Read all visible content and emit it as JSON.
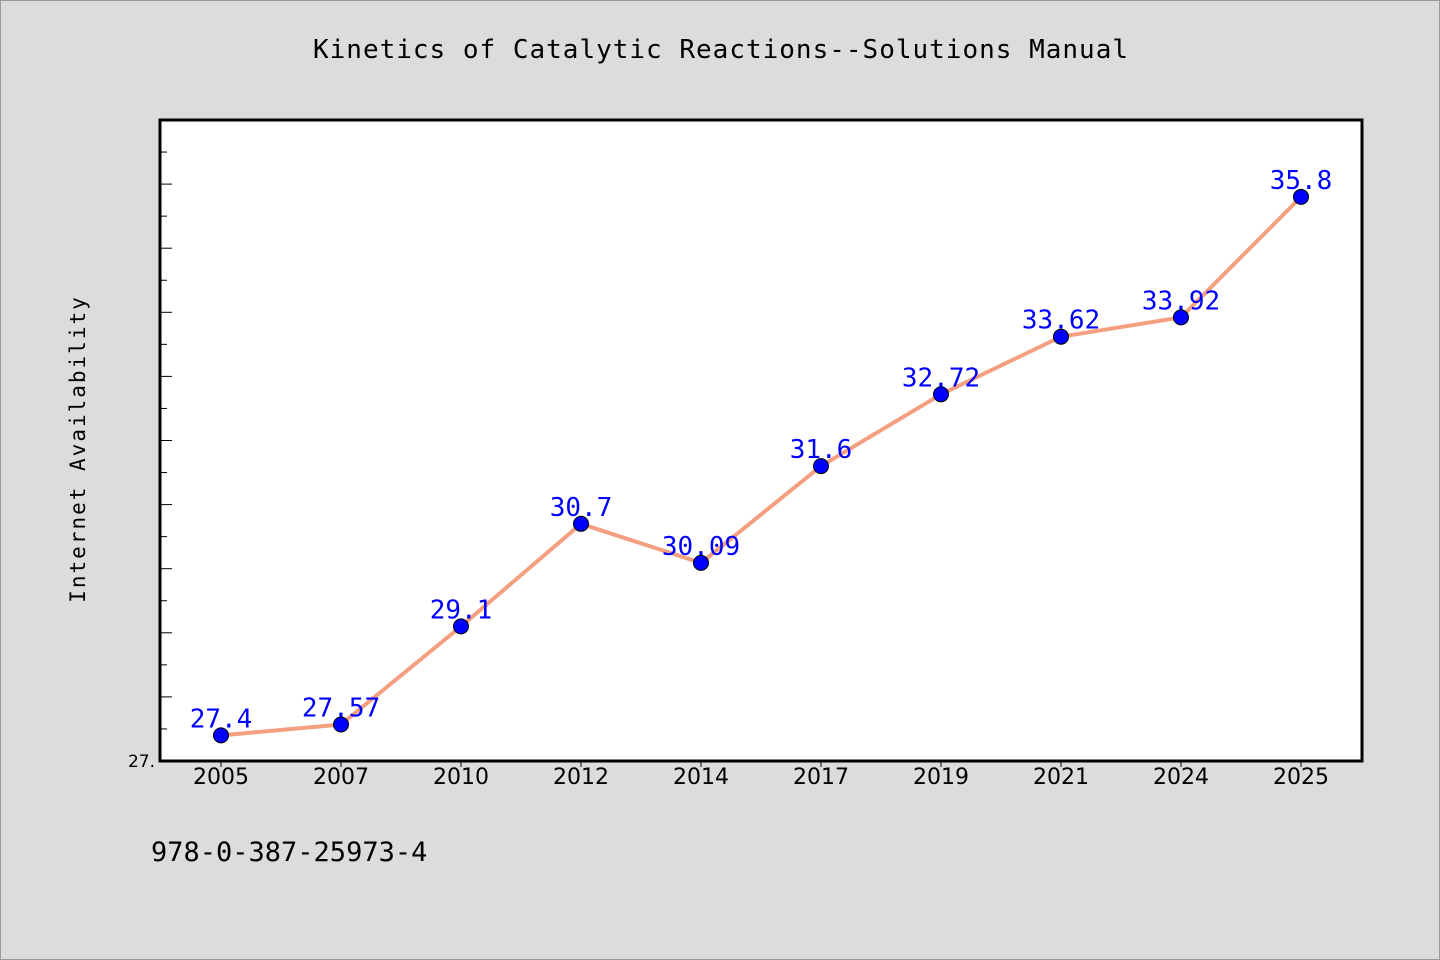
{
  "chart_data": {
    "type": "line",
    "title": "Kinetics of Catalytic Reactions--Solutions Manual",
    "ylabel": "Internet Availability",
    "xlabel": "",
    "categories": [
      "2005",
      "2007",
      "2010",
      "2012",
      "2014",
      "2017",
      "2019",
      "2021",
      "2024",
      "2025"
    ],
    "series": [
      {
        "values": [
          27.4,
          27.57,
          29.1,
          30.7,
          30.09,
          31.6,
          32.72,
          33.62,
          33.92,
          35.8
        ],
        "labels": [
          "27.4",
          "27.57",
          "29.1",
          "30.7",
          "30.09",
          "31.6",
          "32.72",
          "33.62",
          "33.92",
          "35.8"
        ]
      }
    ],
    "ylim": [
      27.0,
      37.0
    ],
    "y_min_label": "27.",
    "grid": false,
    "legend": "none",
    "colors": {
      "line": "#f4a080",
      "marker": "#0000ff",
      "data_label": "#0000ff",
      "plot_background": "#ffffff",
      "page_background": "#dcdcdc"
    }
  },
  "footer": {
    "isbn": "978-0-387-25973-4"
  }
}
